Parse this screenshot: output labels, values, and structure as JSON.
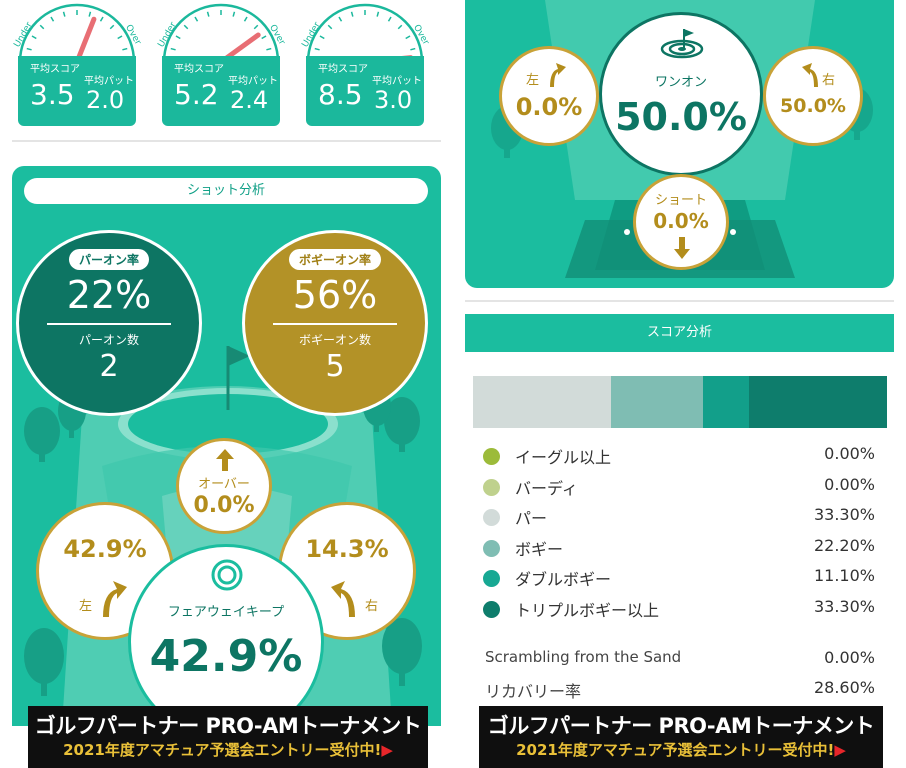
{
  "gauges": [
    {
      "under": "Under",
      "over": "Over",
      "score_label": "平均スコア",
      "putt_label": "平均パット",
      "score": "3.5",
      "putt": "2.0",
      "needle_level": 0.62
    },
    {
      "under": "Under",
      "over": "Over",
      "score_label": "平均スコア",
      "putt_label": "平均パット",
      "score": "5.2",
      "putt": "2.4",
      "needle_level": 0.8
    },
    {
      "under": "Under",
      "over": "Over",
      "score_label": "平均スコア",
      "putt_label": "平均パット",
      "score": "8.5",
      "putt": "3.0",
      "needle_level": 0.97
    }
  ],
  "shot_analysis": {
    "title": "ショット分析",
    "par_on": {
      "label": "パーオン率",
      "rate": "22%",
      "count_label": "パーオン数",
      "count": "2"
    },
    "bogey_on": {
      "label": "ボギーオン率",
      "rate": "56%",
      "count_label": "ボギーオン数",
      "count": "5"
    },
    "over": {
      "label": "オーバー",
      "value": "0.0%"
    },
    "left": {
      "value": "42.9%",
      "label": "左"
    },
    "right": {
      "value": "14.3%",
      "label": "右"
    },
    "fairway": {
      "label": "フェアウェイキープ",
      "value": "42.9%"
    }
  },
  "green_analysis": {
    "left": {
      "label": "左",
      "value": "0.0%"
    },
    "right": {
      "label": "右",
      "value": "50.0%"
    },
    "one_on": {
      "label": "ワンオン",
      "value": "50.0%"
    },
    "short": {
      "label": "ショート",
      "value": "0.0%"
    }
  },
  "score_analysis": {
    "title": "スコア分析",
    "bar": [
      {
        "color": "#d2dbd9",
        "pct": 33.3
      },
      {
        "color": "#7fbdb3",
        "pct": 22.2
      },
      {
        "color": "#129f8a",
        "pct": 11.1
      },
      {
        "color": "#0e7d6c",
        "pct": 33.3
      }
    ],
    "rows": [
      {
        "label": "イーグル以上",
        "value": "0.00%",
        "color": "#9cbb3a"
      },
      {
        "label": "バーディ",
        "value": "0.00%",
        "color": "#bfd18d"
      },
      {
        "label": "パー",
        "value": "33.30%",
        "color": "#d2dbd9"
      },
      {
        "label": "ボギー",
        "value": "22.20%",
        "color": "#7fbdb3"
      },
      {
        "label": "ダブルボギー",
        "value": "11.10%",
        "color": "#17a893"
      },
      {
        "label": "トリプルボギー以上",
        "value": "33.30%",
        "color": "#0e7d6c"
      }
    ],
    "scrambling": {
      "label": "Scrambling from the Sand",
      "value": "0.00%"
    },
    "recovery": {
      "label": "リカバリー率",
      "value": "28.60%"
    }
  },
  "banner": {
    "line1": "ゴルフパートナー PRO-AMトーナメント",
    "line2": "2021年度アマチュア予選会エントリー受付中!",
    "arrow": "▶"
  },
  "colors": {
    "teal": "#1bbd9f",
    "dark_teal": "#0d7563",
    "gold": "#b39227",
    "needle": "#e86e74"
  }
}
